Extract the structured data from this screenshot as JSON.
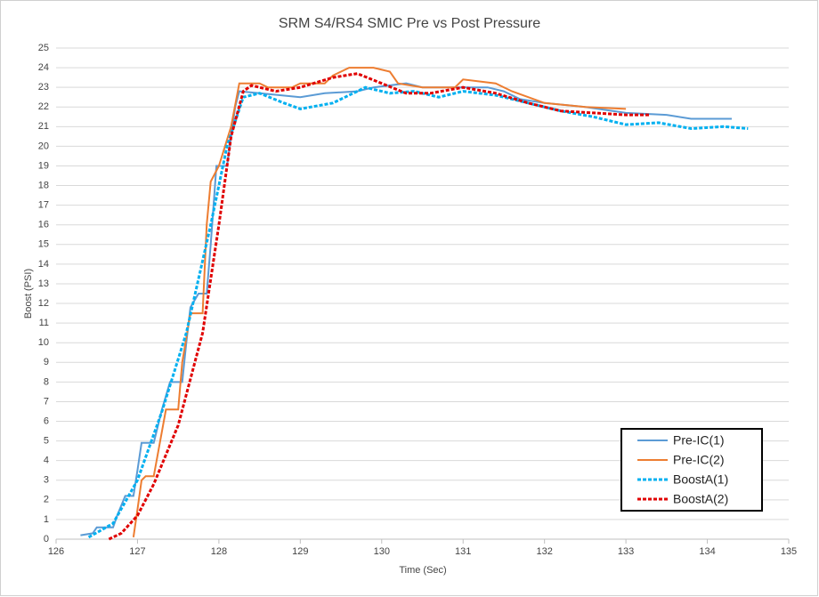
{
  "chart_data": {
    "type": "line",
    "title": "SRM S4/RS4 SMIC Pre vs Post Pressure",
    "x_label": "Time (Sec)",
    "y_label": "Boost (PSI)",
    "xlim": [
      126,
      135
    ],
    "xticks": [
      126,
      127,
      128,
      129,
      130,
      131,
      132,
      133,
      134,
      135
    ],
    "ylim": [
      0,
      25
    ],
    "yticks": [
      0,
      1,
      2,
      3,
      4,
      5,
      6,
      7,
      8,
      9,
      10,
      11,
      12,
      13,
      14,
      15,
      16,
      17,
      18,
      19,
      20,
      21,
      22,
      23,
      24,
      25
    ],
    "grid": true,
    "legend": "lower-right",
    "series": [
      {
        "name": "Pre-IC(1)",
        "color": "#5b9bd5",
        "style": "solid",
        "x": [
          126.3,
          126.45,
          126.5,
          126.7,
          126.75,
          126.85,
          126.95,
          127.0,
          127.05,
          127.2,
          127.3,
          127.4,
          127.55,
          127.6,
          127.65,
          127.75,
          127.85,
          127.9,
          127.97,
          128.1,
          128.2,
          128.25,
          128.5,
          129.0,
          129.3,
          129.7,
          129.9,
          130.3,
          130.5,
          130.9,
          131.3,
          131.5,
          131.7,
          132.0,
          132.5,
          133.0,
          133.5,
          133.8,
          134.3
        ],
        "values": [
          0.2,
          0.3,
          0.6,
          0.6,
          1.2,
          2.2,
          2.2,
          3.5,
          4.9,
          4.9,
          6.6,
          8.0,
          8.0,
          10,
          11.8,
          12.5,
          12.5,
          15,
          19,
          19,
          22,
          22.8,
          22.7,
          22.5,
          22.7,
          22.8,
          23.0,
          23.2,
          23.0,
          23.0,
          23.0,
          22.8,
          22.4,
          22.2,
          22.0,
          21.7,
          21.6,
          21.4,
          21.4
        ]
      },
      {
        "name": "Pre-IC(2)",
        "color": "#ed7d31",
        "style": "solid",
        "x": [
          126.95,
          127.0,
          127.05,
          127.1,
          127.2,
          127.35,
          127.5,
          127.55,
          127.65,
          127.8,
          127.85,
          127.9,
          128.0,
          128.15,
          128.25,
          128.5,
          128.6,
          128.9,
          129.0,
          129.3,
          129.4,
          129.6,
          129.9,
          130.1,
          130.2,
          130.5,
          130.9,
          131.0,
          131.4,
          131.6,
          132.0,
          132.5,
          133.0
        ],
        "values": [
          0.1,
          1.5,
          3.0,
          3.2,
          3.2,
          6.6,
          6.6,
          9,
          11.5,
          11.5,
          16,
          18.2,
          19,
          21,
          23.2,
          23.2,
          23.0,
          23.0,
          23.2,
          23.2,
          23.6,
          24.0,
          24.0,
          23.8,
          23.2,
          23.0,
          23.0,
          23.4,
          23.2,
          22.8,
          22.2,
          22.0,
          21.9
        ]
      },
      {
        "name": "BoostA(1)",
        "color": "#00b0f0",
        "style": "dashed",
        "x": [
          126.4,
          126.7,
          127.0,
          127.3,
          127.6,
          127.9,
          128.1,
          128.3,
          128.5,
          128.8,
          129.0,
          129.4,
          129.8,
          130.1,
          130.4,
          130.7,
          131.0,
          131.4,
          131.8,
          132.2,
          132.6,
          133.0,
          133.4,
          133.8,
          134.2,
          134.5
        ],
        "values": [
          0.1,
          0.8,
          3.0,
          6.5,
          10.5,
          16,
          20,
          22.5,
          22.7,
          22.2,
          21.9,
          22.2,
          23.0,
          22.7,
          22.8,
          22.5,
          22.8,
          22.6,
          22.2,
          21.8,
          21.5,
          21.1,
          21.2,
          20.9,
          21.0,
          20.9
        ]
      },
      {
        "name": "BoostA(2)",
        "color": "#e00000",
        "style": "dashed",
        "x": [
          126.65,
          126.8,
          127.0,
          127.2,
          127.5,
          127.8,
          128.0,
          128.15,
          128.3,
          128.4,
          128.7,
          129.0,
          129.4,
          129.7,
          130.0,
          130.3,
          130.6,
          131.0,
          131.4,
          131.8,
          132.2,
          132.6,
          133.0,
          133.3
        ],
        "values": [
          0.0,
          0.3,
          1.2,
          2.8,
          5.8,
          10.5,
          16,
          20.5,
          22.8,
          23.1,
          22.8,
          23.0,
          23.5,
          23.7,
          23.2,
          22.7,
          22.7,
          23.0,
          22.7,
          22.2,
          21.8,
          21.7,
          21.6,
          21.6
        ]
      }
    ]
  }
}
